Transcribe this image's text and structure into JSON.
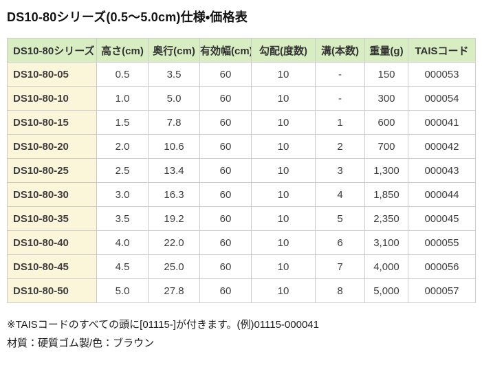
{
  "page": {
    "title": "DS10-80シリーズ(0.5～5.0cm)仕様・価格表",
    "notes": [
      "※TAISコードのすべての頭に[01115-]が付きます。(例)01115-000041",
      "材質：硬質ゴム製/色：ブラウン"
    ]
  },
  "table": {
    "columns": [
      "DS10-80シリーズ",
      "高さ(cm)",
      "奥行(cm)",
      "有効幅(cm)",
      "勾配(度数)",
      "溝(本数)",
      "重量(g)",
      "TAISコード"
    ],
    "rows": [
      [
        "DS10-80-05",
        "0.5",
        "3.5",
        "60",
        "10",
        "-",
        "150",
        "000053"
      ],
      [
        "DS10-80-10",
        "1.0",
        "5.0",
        "60",
        "10",
        "-",
        "300",
        "000054"
      ],
      [
        "DS10-80-15",
        "1.5",
        "7.8",
        "60",
        "10",
        "1",
        "600",
        "000041"
      ],
      [
        "DS10-80-20",
        "2.0",
        "10.6",
        "60",
        "10",
        "2",
        "700",
        "000042"
      ],
      [
        "DS10-80-25",
        "2.5",
        "13.4",
        "60",
        "10",
        "3",
        "1,300",
        "000043"
      ],
      [
        "DS10-80-30",
        "3.0",
        "16.3",
        "60",
        "10",
        "4",
        "1,850",
        "000044"
      ],
      [
        "DS10-80-35",
        "3.5",
        "19.2",
        "60",
        "10",
        "5",
        "2,350",
        "000045"
      ],
      [
        "DS10-80-40",
        "4.0",
        "22.0",
        "60",
        "10",
        "6",
        "3,100",
        "000055"
      ],
      [
        "DS10-80-45",
        "4.5",
        "25.0",
        "60",
        "10",
        "7",
        "4,000",
        "000056"
      ],
      [
        "DS10-80-50",
        "5.0",
        "27.8",
        "60",
        "10",
        "8",
        "5,000",
        "000057"
      ]
    ]
  },
  "colors": {
    "header_bg": "#d8eec2",
    "first_column_bg": "#fbf5da",
    "border": "#cccccc",
    "body_text": "#3d3d3d",
    "title_text": "#111111"
  }
}
